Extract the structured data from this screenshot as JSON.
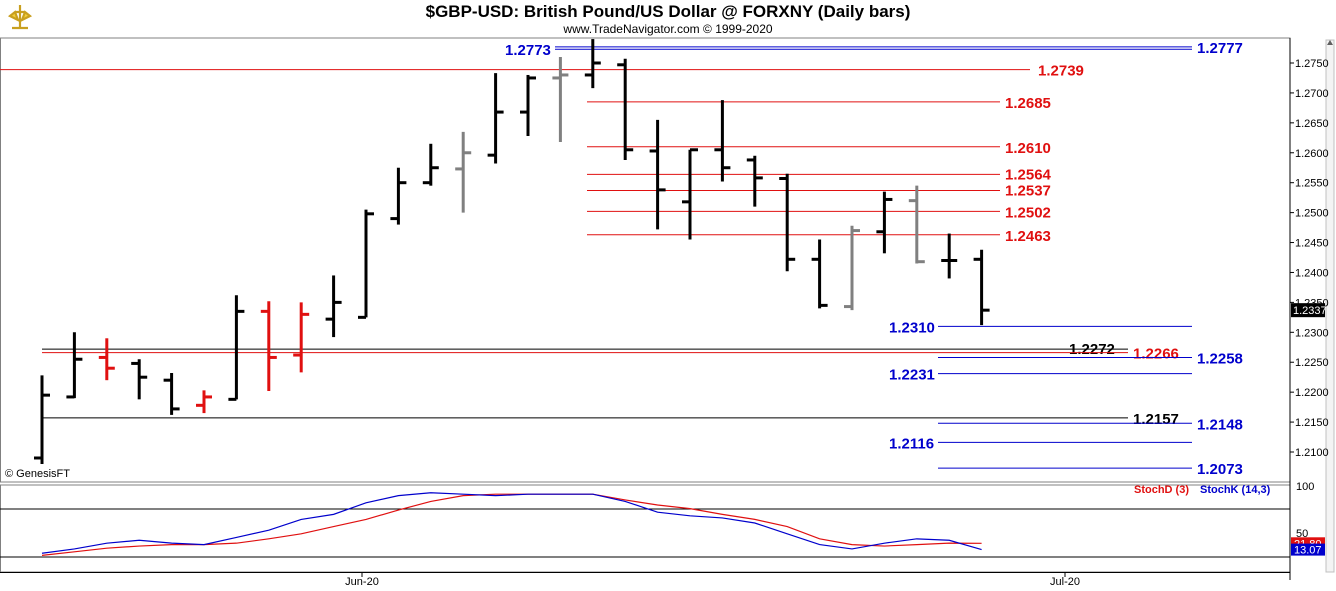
{
  "header": {
    "title": "$GBP-USD:  British Pound/US Dollar @ FORXNY  (Daily bars)",
    "subtitle": "www.TradeNavigator.com © 1999-2020",
    "copyright": "© GenesisFT"
  },
  "chart_data": [
    {
      "type": "ohlc",
      "ylim": [
        1.206,
        1.279
      ],
      "y_ticks": [
        "1.2750",
        "1.2700",
        "1.2650",
        "1.2600",
        "1.2550",
        "1.2500",
        "1.2450",
        "1.2400",
        "1.2350",
        "1.2300",
        "1.2250",
        "1.2200",
        "1.2150",
        "1.2100"
      ],
      "x_ticks": [
        "Jun-20",
        "Jul-20"
      ],
      "last_price": "1.2337",
      "colors": {
        "up": "#000000",
        "down": "#000000",
        "red": "#e01010",
        "gray": "#808080",
        "support": "#0000cc",
        "resistance": "#e01010"
      },
      "bars": [
        {
          "o": 1.209,
          "h": 1.2228,
          "l": 1.208,
          "c": 1.2195,
          "color": "#000000"
        },
        {
          "o": 1.2192,
          "h": 1.23,
          "l": 1.219,
          "c": 1.2255,
          "color": "#000000"
        },
        {
          "o": 1.2258,
          "h": 1.229,
          "l": 1.222,
          "c": 1.224,
          "color": "#e01010"
        },
        {
          "o": 1.2248,
          "h": 1.2255,
          "l": 1.2188,
          "c": 1.2225,
          "color": "#000000"
        },
        {
          "o": 1.222,
          "h": 1.2232,
          "l": 1.2162,
          "c": 1.2172,
          "color": "#000000"
        },
        {
          "o": 1.2178,
          "h": 1.2203,
          "l": 1.2165,
          "c": 1.2192,
          "color": "#e01010"
        },
        {
          "o": 1.2188,
          "h": 1.2362,
          "l": 1.2188,
          "c": 1.2335,
          "color": "#000000"
        },
        {
          "o": 1.2335,
          "h": 1.2352,
          "l": 1.2202,
          "c": 1.2258,
          "color": "#e01010"
        },
        {
          "o": 1.2262,
          "h": 1.235,
          "l": 1.2233,
          "c": 1.233,
          "color": "#e01010"
        },
        {
          "o": 1.2322,
          "h": 1.2395,
          "l": 1.2292,
          "c": 1.235,
          "color": "#000000"
        },
        {
          "o": 1.2325,
          "h": 1.2505,
          "l": 1.2325,
          "c": 1.2498,
          "color": "#000000"
        },
        {
          "o": 1.249,
          "h": 1.2575,
          "l": 1.248,
          "c": 1.255,
          "color": "#000000"
        },
        {
          "o": 1.255,
          "h": 1.2615,
          "l": 1.2545,
          "c": 1.2575,
          "color": "#000000"
        },
        {
          "o": 1.2573,
          "h": 1.2635,
          "l": 1.25,
          "c": 1.26,
          "color": "#808080"
        },
        {
          "o": 1.2596,
          "h": 1.2733,
          "l": 1.2582,
          "c": 1.2668,
          "color": "#000000"
        },
        {
          "o": 1.2668,
          "h": 1.273,
          "l": 1.2628,
          "c": 1.2725,
          "color": "#000000"
        },
        {
          "o": 1.2725,
          "h": 1.276,
          "l": 1.2618,
          "c": 1.273,
          "color": "#808080"
        },
        {
          "o": 1.273,
          "h": 1.279,
          "l": 1.2708,
          "c": 1.275,
          "color": "#000000"
        },
        {
          "o": 1.2747,
          "h": 1.2757,
          "l": 1.2588,
          "c": 1.2605,
          "color": "#000000"
        },
        {
          "o": 1.2603,
          "h": 1.2655,
          "l": 1.2472,
          "c": 1.2538,
          "color": "#000000"
        },
        {
          "o": 1.2518,
          "h": 1.2605,
          "l": 1.2455,
          "c": 1.2605,
          "color": "#000000"
        },
        {
          "o": 1.2605,
          "h": 1.2688,
          "l": 1.2552,
          "c": 1.2575,
          "color": "#000000"
        },
        {
          "o": 1.2588,
          "h": 1.2595,
          "l": 1.251,
          "c": 1.2558,
          "color": "#000000"
        },
        {
          "o": 1.2557,
          "h": 1.2565,
          "l": 1.2402,
          "c": 1.2422,
          "color": "#000000"
        },
        {
          "o": 1.2422,
          "h": 1.2455,
          "l": 1.234,
          "c": 1.2345,
          "color": "#000000"
        },
        {
          "o": 1.2343,
          "h": 1.2478,
          "l": 1.2337,
          "c": 1.247,
          "color": "#808080"
        },
        {
          "o": 1.2468,
          "h": 1.2535,
          "l": 1.2432,
          "c": 1.2522,
          "color": "#000000"
        },
        {
          "o": 1.252,
          "h": 1.2545,
          "l": 1.2415,
          "c": 1.2418,
          "color": "#808080"
        },
        {
          "o": 1.242,
          "h": 1.2465,
          "l": 1.239,
          "c": 1.242,
          "color": "#000000"
        },
        {
          "o": 1.2422,
          "h": 1.2438,
          "l": 1.2312,
          "c": 1.2337,
          "color": "#000000"
        }
      ],
      "levels": [
        {
          "label": "1.2773",
          "value": 1.2773,
          "color": "#0000cc",
          "side": "left"
        },
        {
          "label": "1.2777",
          "value": 1.2777,
          "color": "#0000cc",
          "side": "right"
        },
        {
          "label": "1.2739",
          "value": 1.2739,
          "color": "#e01010",
          "side": "right"
        },
        {
          "label": "1.2685",
          "value": 1.2685,
          "color": "#e01010",
          "side": "right"
        },
        {
          "label": "1.2610",
          "value": 1.261,
          "color": "#e01010",
          "side": "right"
        },
        {
          "label": "1.2564",
          "value": 1.2564,
          "color": "#e01010",
          "side": "right"
        },
        {
          "label": "1.2537",
          "value": 1.2537,
          "color": "#e01010",
          "side": "right"
        },
        {
          "label": "1.2502",
          "value": 1.2502,
          "color": "#e01010",
          "side": "right"
        },
        {
          "label": "1.2463",
          "value": 1.2463,
          "color": "#e01010",
          "side": "right"
        },
        {
          "label": "1.2310",
          "value": 1.231,
          "color": "#0000cc",
          "side": "left"
        },
        {
          "label": "1.2272",
          "value": 1.2272,
          "color": "#000000",
          "side": "right"
        },
        {
          "label": "1.2266",
          "value": 1.2266,
          "color": "#e01010",
          "side": "right"
        },
        {
          "label": "1.2258",
          "value": 1.2258,
          "color": "#0000cc",
          "side": "right"
        },
        {
          "label": "1.2231",
          "value": 1.2231,
          "color": "#0000cc",
          "side": "left"
        },
        {
          "label": "1.2157",
          "value": 1.2157,
          "color": "#000000",
          "side": "right"
        },
        {
          "label": "1.2148",
          "value": 1.2148,
          "color": "#0000cc",
          "side": "right"
        },
        {
          "label": "1.2116",
          "value": 1.2116,
          "color": "#0000cc",
          "side": "left"
        },
        {
          "label": "1.2073",
          "value": 1.2073,
          "color": "#0000cc",
          "side": "right"
        }
      ]
    },
    {
      "type": "line",
      "ylim": [
        0,
        100
      ],
      "y_ticks": [
        "100",
        "50"
      ],
      "series": [
        {
          "name": "StochD (3)",
          "color": "#e01010",
          "last_label": "21.80",
          "values": [
            5,
            10,
            15,
            18,
            20,
            20,
            22,
            28,
            35,
            45,
            55,
            68,
            80,
            88,
            90,
            90,
            90,
            90,
            82,
            75,
            70,
            62,
            55,
            45,
            28,
            20,
            18,
            20,
            22,
            21.8
          ]
        },
        {
          "name": "StochK (14,3)",
          "color": "#0000cc",
          "last_label": "13.07",
          "values": [
            8,
            14,
            22,
            26,
            22,
            20,
            30,
            40,
            55,
            62,
            78,
            88,
            92,
            90,
            88,
            90,
            90,
            90,
            80,
            65,
            60,
            57,
            50,
            35,
            20,
            14,
            22,
            28,
            26,
            13.07
          ]
        }
      ]
    }
  ]
}
